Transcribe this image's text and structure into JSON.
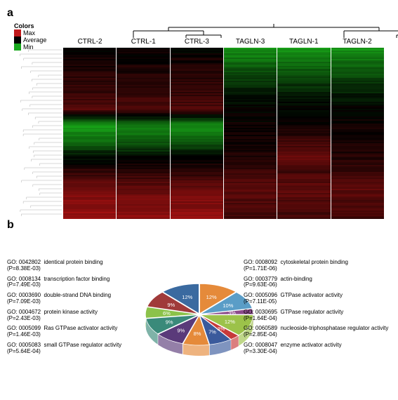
{
  "panels": {
    "a_label": "a",
    "b_label": "b"
  },
  "heatmap": {
    "legend_title": "Colors",
    "legend_entries": [
      {
        "label": "Max",
        "color": "#c0191b"
      },
      {
        "label": "Average",
        "color": "#000000"
      },
      {
        "label": "Min",
        "color": "#19a81e"
      }
    ],
    "columns": [
      "CTRL-2",
      "CTRL-1",
      "CTRL-3",
      "TAGLN-3",
      "TAGLN-1",
      "TAGLN-2"
    ],
    "background": "#000000",
    "color_max": "#c01414",
    "color_min": "#18a818",
    "row_dendro_color": "#b0b0b0",
    "col_dendro_color": "#000000",
    "rows": 120,
    "column_profiles": {
      "CTRL-2": [
        0.0,
        0.12,
        0.22,
        0.3,
        0.42,
        -0.95,
        -0.65,
        -0.1,
        0.25,
        0.55,
        0.7,
        0.8
      ],
      "CTRL-1": [
        0.0,
        0.1,
        0.2,
        0.28,
        0.4,
        -0.8,
        -0.55,
        -0.08,
        0.22,
        0.5,
        0.62,
        0.72
      ],
      "CTRL-3": [
        0.0,
        0.11,
        0.21,
        0.29,
        0.41,
        -0.85,
        -0.58,
        -0.05,
        0.24,
        0.52,
        0.66,
        0.76
      ],
      "TAGLN-3": [
        -0.85,
        -0.6,
        -0.35,
        -0.15,
        0.0,
        0.05,
        0.1,
        0.15,
        0.28,
        0.45,
        0.4,
        0.32
      ],
      "TAGLN-1": [
        -0.9,
        -0.65,
        -0.38,
        -0.18,
        0.0,
        0.08,
        0.3,
        0.55,
        0.35,
        0.48,
        0.42,
        0.34
      ],
      "TAGLN-2": [
        -0.88,
        -0.62,
        -0.36,
        -0.16,
        0.0,
        0.06,
        0.12,
        0.18,
        0.3,
        0.46,
        0.41,
        0.33
      ]
    }
  },
  "pie": {
    "type": "pie-3d",
    "label_fontsize": 8,
    "percent_fontsize": 8,
    "percent_color": "#ffffff",
    "slices": [
      {
        "id": "GO: 0042802",
        "name": "identical protein binding",
        "p": "P=8.38E-03",
        "pct": 12,
        "color": "#e58a3a",
        "side": "left"
      },
      {
        "id": "GO: 0008134",
        "name": "transcription factor binding",
        "p": "P=7.49E-03",
        "pct": 10,
        "color": "#5a9dc7",
        "side": "left"
      },
      {
        "id": "GO: 0003690",
        "name": "double-strand DNA binding",
        "p": "P=7.09E-03",
        "pct": 3,
        "color": "#8b4a8b",
        "side": "left"
      },
      {
        "id": "GO: 0004672",
        "name": "protein kinase activity",
        "p": "P=2.43E-03",
        "pct": 12,
        "color": "#9cc24a",
        "side": "left"
      },
      {
        "id": "GO: 0005099",
        "name": "Ras GTPase activator activity",
        "p": "P=1.46E-03",
        "pct": 3,
        "color": "#c73a3a",
        "side": "left"
      },
      {
        "id": "GO: 0005083",
        "name": "small GTPase regulator activity",
        "p": "P=5.64E-04",
        "pct": 7,
        "color": "#3a5a9c",
        "side": "left"
      },
      {
        "id": "GO: 0008047",
        "name": "enzyme activator activity",
        "p": "P=3.30E-04",
        "pct": 8,
        "color": "#e58a3a",
        "side": "right"
      },
      {
        "id": "GO: 0060589",
        "name": "nucleoside-triphosphatase regulator activity",
        "p": "P=2.85E-04",
        "pct": 9,
        "color": "#5a3a7a",
        "side": "right"
      },
      {
        "id": "GO: 0030695",
        "name": "GTPase regulator activity",
        "p": "P=1.64E-04",
        "pct": 9,
        "color": "#3a8a7a",
        "side": "right"
      },
      {
        "id": "GO: 0005096",
        "name": "GTPase activator activity",
        "p": "P=7.11E-05",
        "pct": 6,
        "color": "#8cc24a",
        "side": "right"
      },
      {
        "id": "GO: 0003779",
        "name": "actin-binding",
        "p": "P=9.63E-06",
        "pct": 9,
        "color": "#a03a3a",
        "side": "right"
      },
      {
        "id": "GO: 0008092",
        "name": "cytoskeletal protein binding",
        "p": "P=1.71E-06",
        "pct": 12,
        "color": "#3a6aa0",
        "side": "right"
      }
    ]
  }
}
